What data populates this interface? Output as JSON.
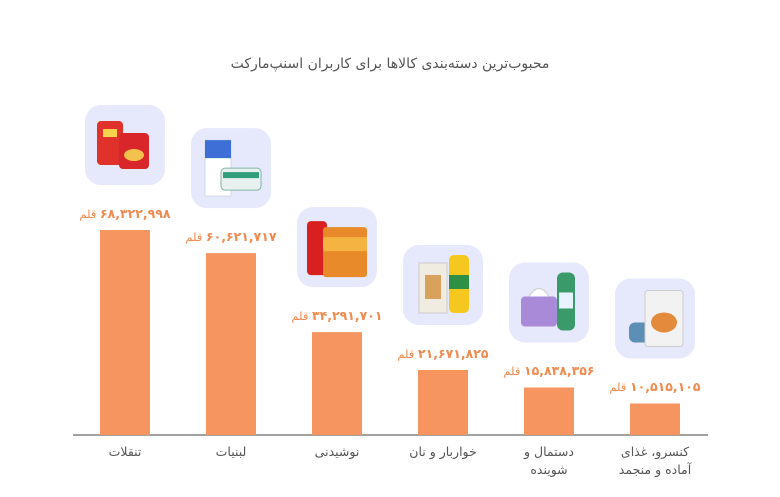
{
  "chart_data": {
    "type": "bar",
    "title": "محبوب‌ترین دسته‌بندی کالاها برای کاربران اسنپ‌مارکت",
    "categories": [
      "تنقلات",
      "لبنیات",
      "نوشیدنی",
      "خواربار و نان",
      "دستمال و\nشوینده",
      "کنسرو، غذای\nآماده و منجمد"
    ],
    "values": [
      68322998,
      60621717,
      34291701,
      21671825,
      15838356,
      10515105
    ],
    "data_labels": [
      "۶۸,۳۲۲,۹۹۸",
      "۶۰,۶۲۱,۷۱۷",
      "۳۴,۲۹۱,۷۰۱",
      "۲۱,۶۷۱,۸۲۵",
      "۱۵,۸۳۸,۳۵۶",
      "۱۰,۵۱۵,۱۰۵"
    ],
    "unit": "قلم",
    "ylim": [
      0,
      70000000
    ],
    "grid": false,
    "colors": {
      "bar": "#f79560",
      "label": "#f08a50",
      "icon_bg": "#e6e8fb",
      "axis": "#444444"
    },
    "icons": [
      "snacks-chips-icon",
      "dairy-milk-icon",
      "drinks-can-icon",
      "groceries-pasta-oil-icon",
      "tissue-detergent-icon",
      "canned-frozen-food-icon"
    ]
  }
}
